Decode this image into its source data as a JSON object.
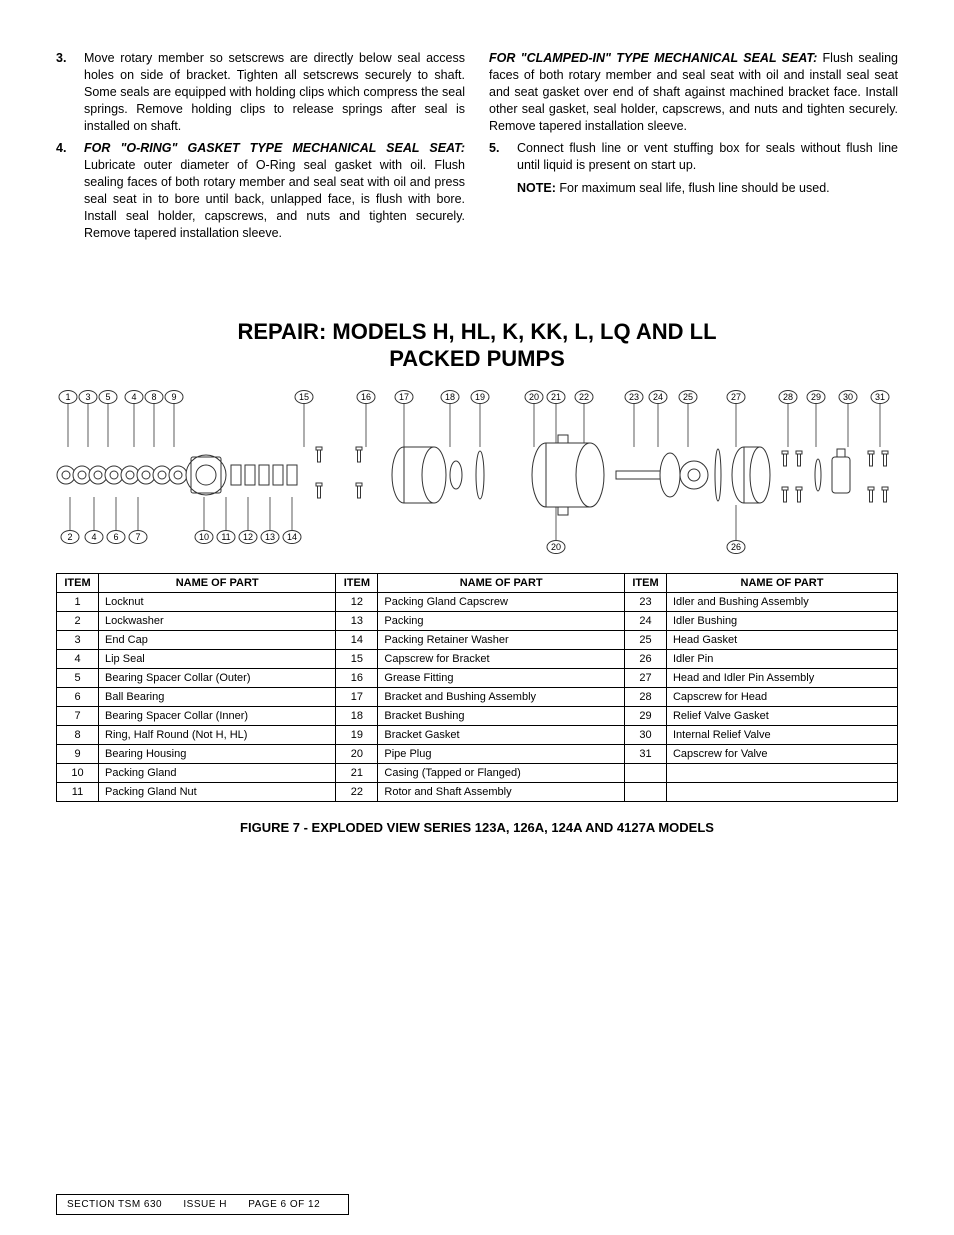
{
  "top": {
    "left": [
      {
        "num": "3.",
        "body": "Move rotary member so setscrews are directly below seal access holes on side of bracket. Tighten all setscrews securely to shaft.  Some  seals are equipped with holding clips which compress the seal springs.  Remove holding clips to release springs after seal is installed on shaft."
      },
      {
        "num": "4.",
        "lead_bold_italic": "FOR \"O-RING\" GASKET TYPE MECHANICAL SEAL SEAT:",
        "body": " Lubricate outer diameter of O-Ring seal gasket with oil.  Flush sealing faces of both rotary member and seal seat with oil and press seal  seat in to bore until back, unlapped face, is flush with bore.  Install seal holder, capscrews, and nuts and tighten securely. Remove tapered installation sleeve."
      }
    ],
    "right": {
      "lead_bold_italic": "FOR \"CLAMPED-IN\" TYPE MECHANICAL SEAL SEAT:",
      "lead_body": " Flush sealing faces of both rotary member and seal seat with oil and install seal seat and seat gasket over end of shaft against machined bracket face.  Install other seal gasket, seal holder, capscrews, and nuts and tighten securely.  Remove tapered installation sleeve.",
      "item": {
        "num": "5.",
        "body": "Connect flush line or vent stuffing box for seals without flush line until liquid is present on start up."
      },
      "note_label": "NOTE:",
      "note_body": " For maximum seal life, flush line should be used."
    }
  },
  "section_title_line1": "REPAIR: MODELS H, HL, K, KK, L, LQ AND LL",
  "section_title_line2": "PACKED PUMPS",
  "callouts_top": [
    "1",
    "3",
    "5",
    "4",
    "8",
    "9",
    "15",
    "16",
    "17",
    "18",
    "19",
    "20",
    "21",
    "22",
    "23",
    "24",
    "25",
    "27",
    "28",
    "29",
    "30",
    "31"
  ],
  "callouts_bottom_left": [
    "2",
    "4",
    "6",
    "7",
    "10",
    "11",
    "12",
    "13",
    "14"
  ],
  "callouts_bottom_mid": [
    "20"
  ],
  "callouts_bottom_right": [
    "26"
  ],
  "table": {
    "headers": [
      "ITEM",
      "NAME OF PART",
      "ITEM",
      "NAME OF PART",
      "ITEM",
      "NAME OF PART"
    ],
    "rows": [
      [
        "1",
        "Locknut",
        "12",
        "Packing Gland Capscrew",
        "23",
        "Idler and Bushing Assembly"
      ],
      [
        "2",
        "Lockwasher",
        "13",
        "Packing",
        "24",
        "Idler Bushing"
      ],
      [
        "3",
        "End Cap",
        "14",
        "Packing Retainer Washer",
        "25",
        "Head Gasket"
      ],
      [
        "4",
        "Lip Seal",
        "15",
        "Capscrew for Bracket",
        "26",
        "Idler Pin"
      ],
      [
        "5",
        "Bearing Spacer Collar (Outer)",
        "16",
        "Grease Fitting",
        "27",
        "Head and Idler Pin Assembly"
      ],
      [
        "6",
        "Ball Bearing",
        "17",
        "Bracket and Bushing Assembly",
        "28",
        "Capscrew for Head"
      ],
      [
        "7",
        "Bearing Spacer Collar (Inner)",
        "18",
        "Bracket Bushing",
        "29",
        "Relief Valve Gasket"
      ],
      [
        "8",
        "Ring, Half Round (Not H, HL)",
        "19",
        "Bracket Gasket",
        "30",
        "Internal Relief Valve"
      ],
      [
        "9",
        "Bearing Housing",
        "20",
        "Pipe Plug",
        "31",
        "Capscrew for Valve"
      ],
      [
        "10",
        "Packing Gland",
        "21",
        "Casing (Tapped or Flanged)",
        "",
        ""
      ],
      [
        "11",
        "Packing Gland Nut",
        "22",
        "Rotor and Shaft Assembly",
        "",
        ""
      ]
    ]
  },
  "figure_caption": "FIGURE 7 - EXPLODED VIEW SERIES 123A, 126A, 124A AND 4127A MODELS",
  "footer": {
    "section": "SECTION  TSM  630",
    "issue": "ISSUE    H",
    "page": "PAGE  6  OF   12"
  },
  "diagram_style": {
    "stroke": "#333333",
    "stroke_width": 1,
    "fill": "#ffffff"
  }
}
